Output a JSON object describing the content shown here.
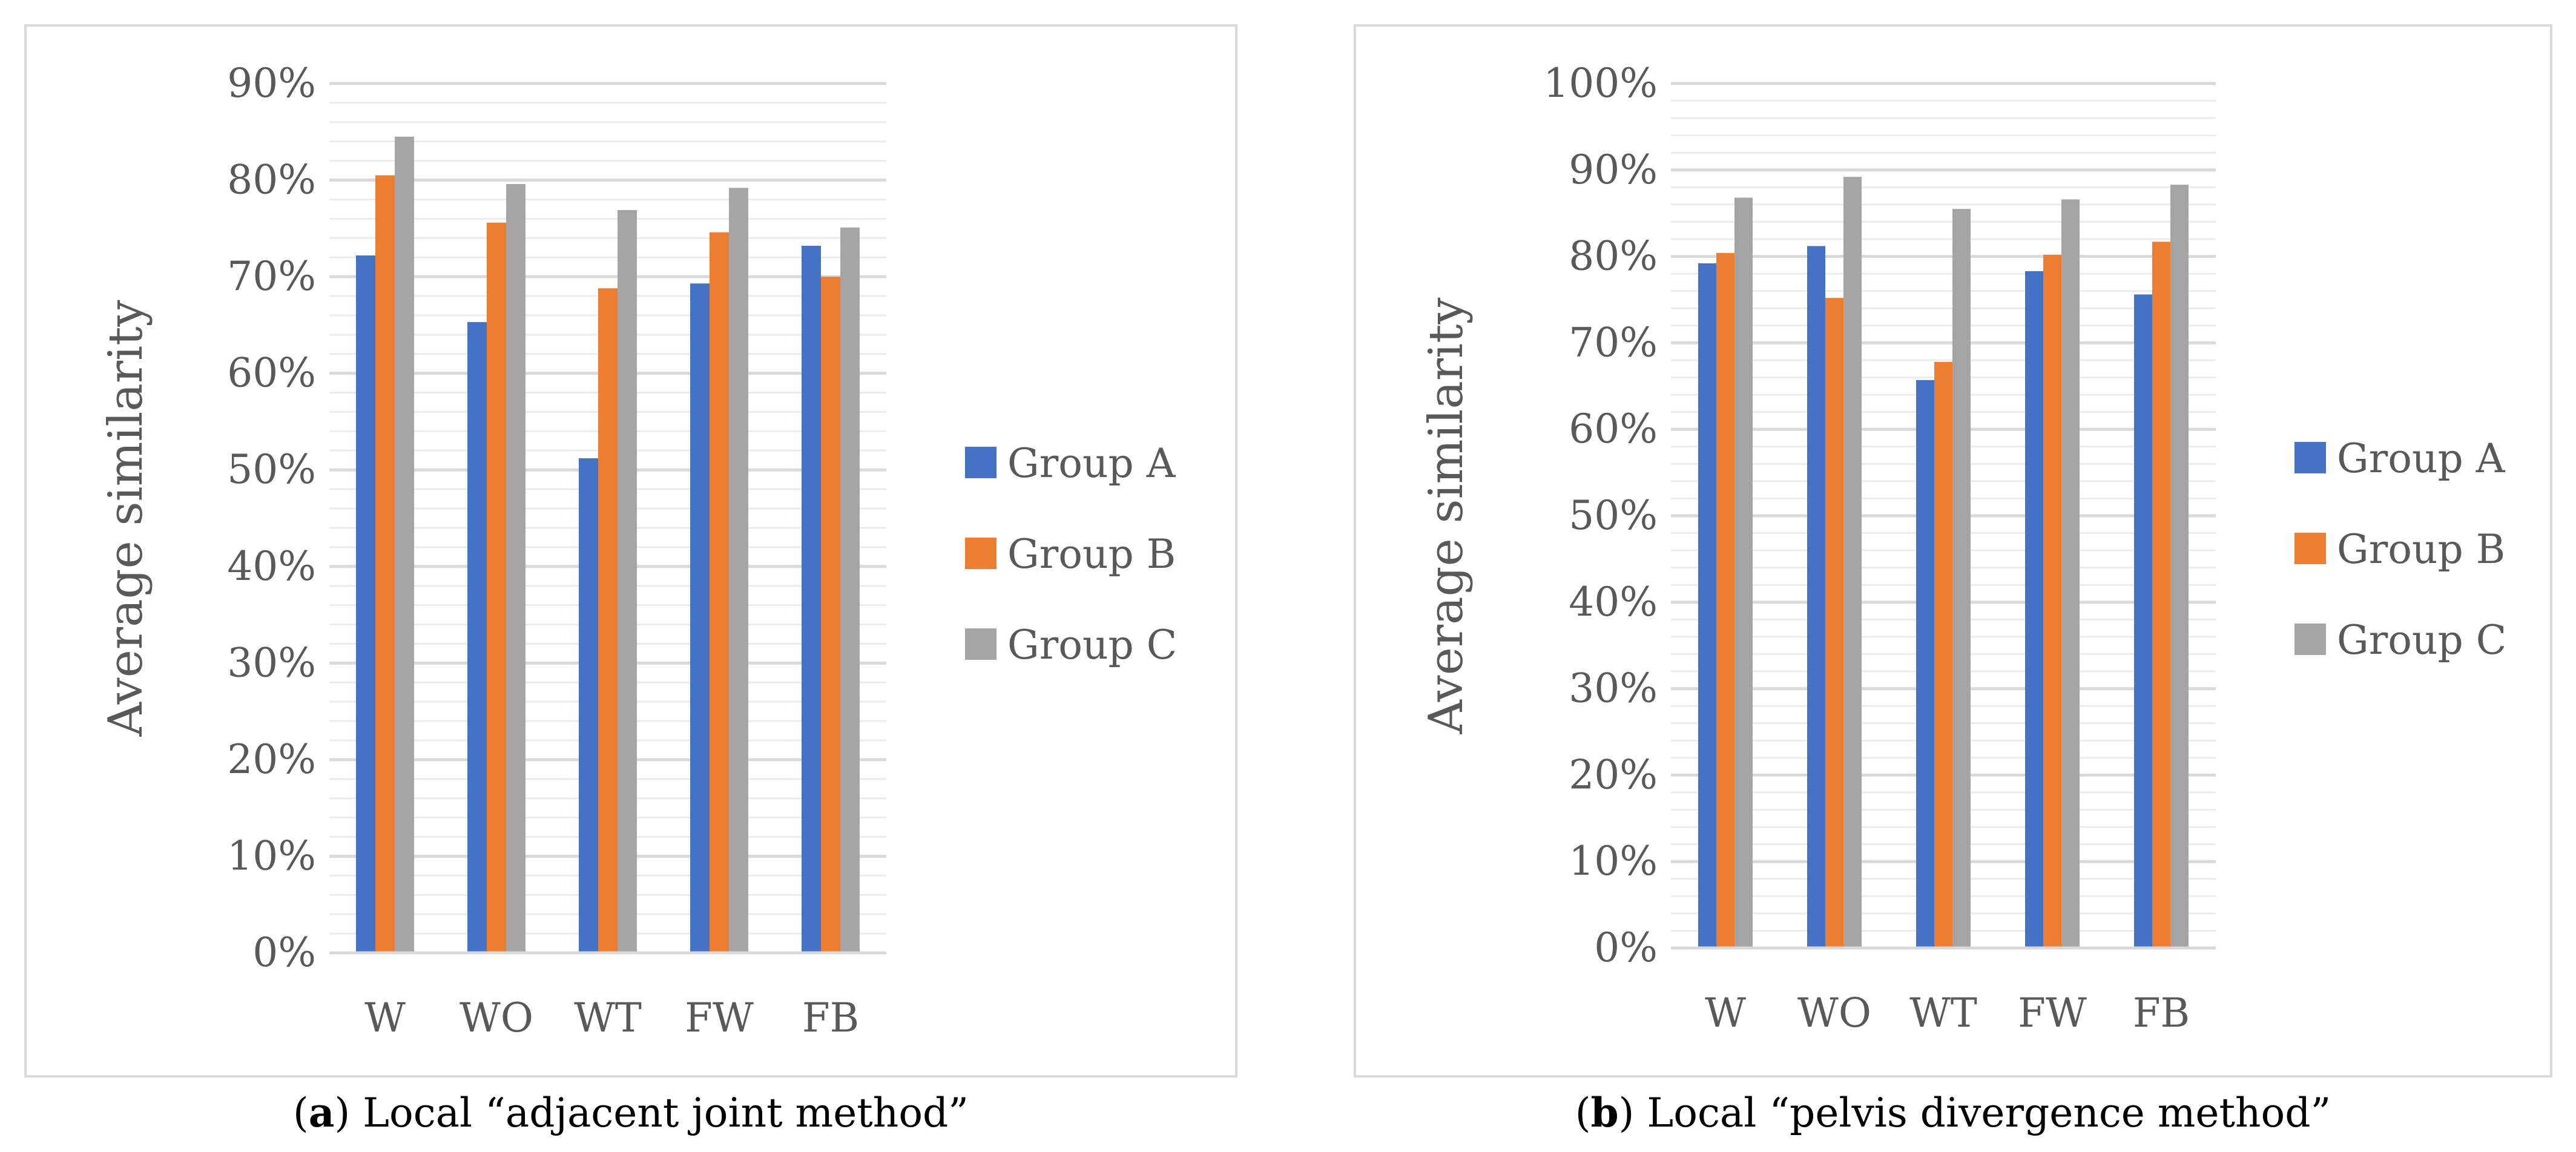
{
  "colors": {
    "group_a": "#4472C4",
    "group_b": "#ED7D31",
    "group_c": "#A5A5A5",
    "grid": "#d9d9d9",
    "text": "#595959"
  },
  "captions": [
    {
      "letter": "a",
      "text": ") Local “adjacent joint method”"
    },
    {
      "letter": "b",
      "text": ") Local “pelvis divergence method”"
    }
  ],
  "chart_data": [
    {
      "type": "bar",
      "title": "",
      "xlabel": "",
      "ylabel": "Average similarity",
      "categories": [
        "W",
        "WO",
        "WT",
        "FW",
        "FB"
      ],
      "ylim": [
        0,
        90
      ],
      "ytick_labels": [
        "0%",
        "10%",
        "20%",
        "30%",
        "40%",
        "50%",
        "60%",
        "70%",
        "80%",
        "90%"
      ],
      "legend": [
        "Group A",
        "Group B",
        "Group C"
      ],
      "series": [
        {
          "name": "Group A",
          "values": [
            72.2,
            65.3,
            51.2,
            69.3,
            73.2
          ]
        },
        {
          "name": "Group B",
          "values": [
            80.5,
            75.6,
            68.8,
            74.6,
            70.0
          ]
        },
        {
          "name": "Group C",
          "values": [
            84.5,
            79.6,
            76.9,
            79.2,
            75.1
          ]
        }
      ]
    },
    {
      "type": "bar",
      "title": "",
      "xlabel": "",
      "ylabel": "Average similarity",
      "categories": [
        "W",
        "WO",
        "WT",
        "FW",
        "FB"
      ],
      "ylim": [
        0,
        100
      ],
      "ytick_labels": [
        "0%",
        "10%",
        "20%",
        "30%",
        "40%",
        "50%",
        "60%",
        "70%",
        "80%",
        "90%",
        "100%"
      ],
      "legend": [
        "Group A",
        "Group B",
        "Group C"
      ],
      "series": [
        {
          "name": "Group A",
          "values": [
            79.2,
            81.2,
            65.7,
            78.3,
            75.6
          ]
        },
        {
          "name": "Group B",
          "values": [
            80.4,
            75.2,
            67.8,
            80.2,
            81.7
          ]
        },
        {
          "name": "Group C",
          "values": [
            86.8,
            89.2,
            85.5,
            86.6,
            88.3
          ]
        }
      ]
    }
  ]
}
